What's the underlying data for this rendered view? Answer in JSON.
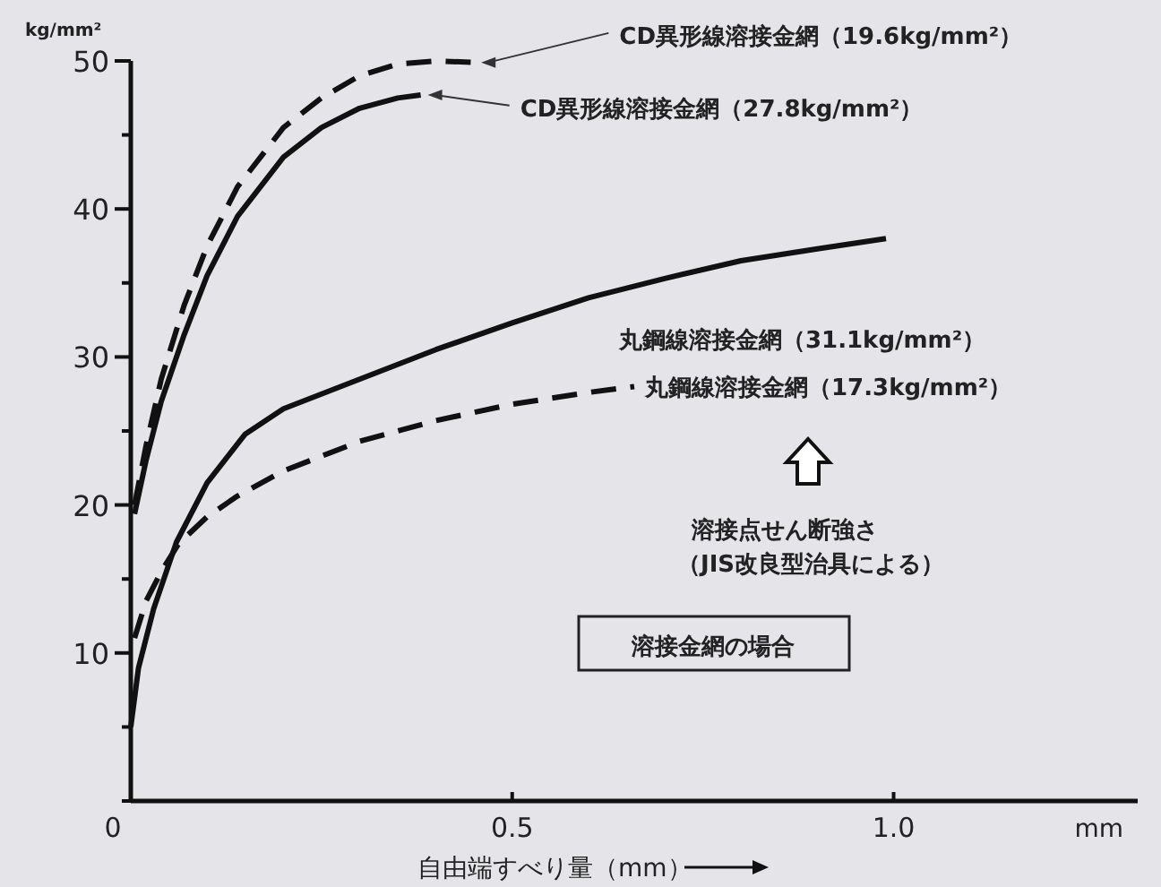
{
  "chart_data": {
    "type": "line",
    "xlabel": "自由端すべり量（mm）",
    "ylabel": "kg/mm²",
    "xlim": [
      0,
      1.32
    ],
    "ylim": [
      0,
      50
    ],
    "xticks": [
      0,
      0.5,
      {
        "value": 1.0,
        "label": "1.0"
      }
    ],
    "yticks": [
      {
        "value": 0,
        "label": null
      },
      {
        "value": 5,
        "label": null
      },
      10,
      {
        "value": 15,
        "label": null
      },
      20,
      {
        "value": 25,
        "label": null
      },
      30,
      {
        "value": 35,
        "label": null
      },
      40,
      {
        "value": 45,
        "label": null
      },
      50
    ],
    "grid": false,
    "marker": "none",
    "series": [
      {
        "name": "CD異形線溶接金網（19.6kg/mm²）",
        "color": "#111111",
        "line_style": "dashed",
        "x": [
          0.005,
          0.02,
          0.04,
          0.07,
          0.1,
          0.14,
          0.2,
          0.25,
          0.3,
          0.35,
          0.4,
          0.45
        ],
        "values": [
          20,
          24,
          28.5,
          33.5,
          37.5,
          41.5,
          45.5,
          47.5,
          49,
          49.8,
          50,
          49.9
        ]
      },
      {
        "name": "CD異形線溶接金網（27.8kg/mm²）",
        "color": "#111111",
        "line_style": "solid",
        "x": [
          0.005,
          0.02,
          0.04,
          0.07,
          0.1,
          0.14,
          0.2,
          0.25,
          0.3,
          0.35,
          0.38
        ],
        "values": [
          19.4,
          23,
          27,
          31.5,
          35.5,
          39.5,
          43.5,
          45.5,
          46.8,
          47.5,
          47.7
        ]
      },
      {
        "name": "丸鋼線溶接金網（31.1kg/mm²）",
        "color": "#111111",
        "line_style": "solid",
        "x": [
          0,
          0.01,
          0.03,
          0.06,
          0.1,
          0.15,
          0.2,
          0.3,
          0.4,
          0.5,
          0.6,
          0.7,
          0.8,
          0.9,
          0.99
        ],
        "values": [
          5,
          9,
          13,
          17.5,
          21.5,
          24.8,
          26.5,
          28.5,
          30.5,
          32.3,
          34,
          35.3,
          36.5,
          37.3,
          38
        ]
      },
      {
        "name": "丸鋼線溶接金網（17.3kg/mm²）",
        "color": "#111111",
        "line_style": "dashed",
        "x": [
          0.005,
          0.02,
          0.04,
          0.063,
          0.1,
          0.14,
          0.2,
          0.3,
          0.4,
          0.5,
          0.6,
          0.66
        ],
        "values": [
          11,
          13.5,
          15.5,
          17.4,
          19.2,
          20.6,
          22.3,
          24.3,
          25.7,
          26.8,
          27.6,
          28
        ]
      }
    ],
    "annotations": [
      "mm",
      "溶接点せん断強さ",
      "（JIS改良型治具による）",
      "溶接金網の場合"
    ]
  }
}
